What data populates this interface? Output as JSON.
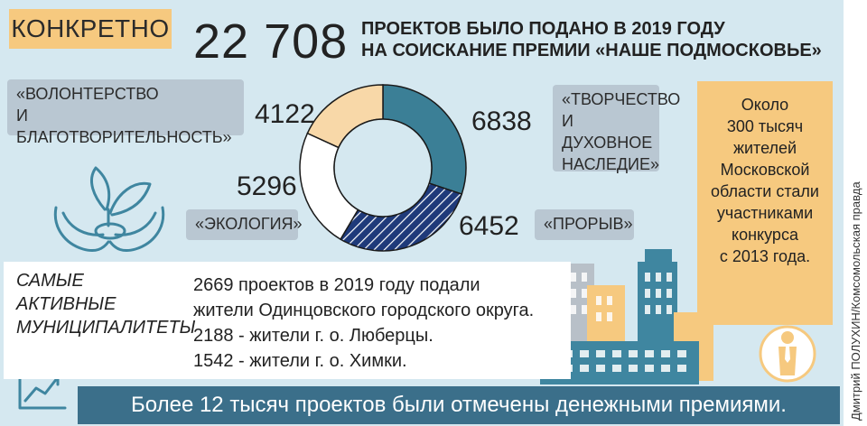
{
  "header": {
    "tag": "КОНКРЕТНО",
    "big_number": "22 708",
    "headline_line1": "ПРОЕКТОВ БЫЛО ПОДАНО В 2019 ГОДУ",
    "headline_line2": "НА СОИСКАНИЕ ПРЕМИИ «НАШЕ ПОДМОСКОВЬЕ»"
  },
  "chart_data": {
    "type": "pie",
    "variant": "donut",
    "slices": [
      {
        "label_line1": "«ТВОРЧЕСТВО",
        "label_line2": "И ДУХОВНОЕ",
        "label_line3": "НАСЛЕДИЕ»",
        "value": 6838,
        "color": "#3b7f96"
      },
      {
        "label_line1": "«ПРОРЫВ»",
        "value": 6452,
        "color": "#1f3a7a",
        "pattern": "diagonal-stripes"
      },
      {
        "label_line1": "«ЭКОЛОГИЯ»",
        "value": 5296,
        "color": "#ffffff"
      },
      {
        "label_line1": "«ВОЛОНТЕРСТВО",
        "label_line2": "И БЛАГОТВОРИТЕЛЬНОСТЬ»",
        "value": 4122,
        "color": "#f8d8a8"
      }
    ]
  },
  "side_note": {
    "lines": [
      "Около",
      "300 тысяч",
      "жителей",
      "Московской",
      "области стали",
      "участниками",
      "конкурса",
      "с 2013 года."
    ]
  },
  "municipalities": {
    "title_lines": [
      "САМЫЕ",
      "АКТИВНЫЕ",
      "МУНИЦИПАЛИТЕТЫ"
    ],
    "lines": [
      "2669 проектов в 2019 году подали",
      "жители Одинцовского городского округа.",
      "2188 - жители г. о. Люберцы.",
      "1542 - жители г. о. Химки."
    ]
  },
  "footer": {
    "text": "Более 12 тысяч проектов были отмечены денежными премиями."
  },
  "credit": "Дмитрий ПОЛУХИН/Комсомольская правда",
  "colors": {
    "panel": "#d5e8f0",
    "accent_orange": "#f6c97f",
    "accent_teal": "#3b6f8a",
    "label_gray": "#b9c7d2"
  }
}
